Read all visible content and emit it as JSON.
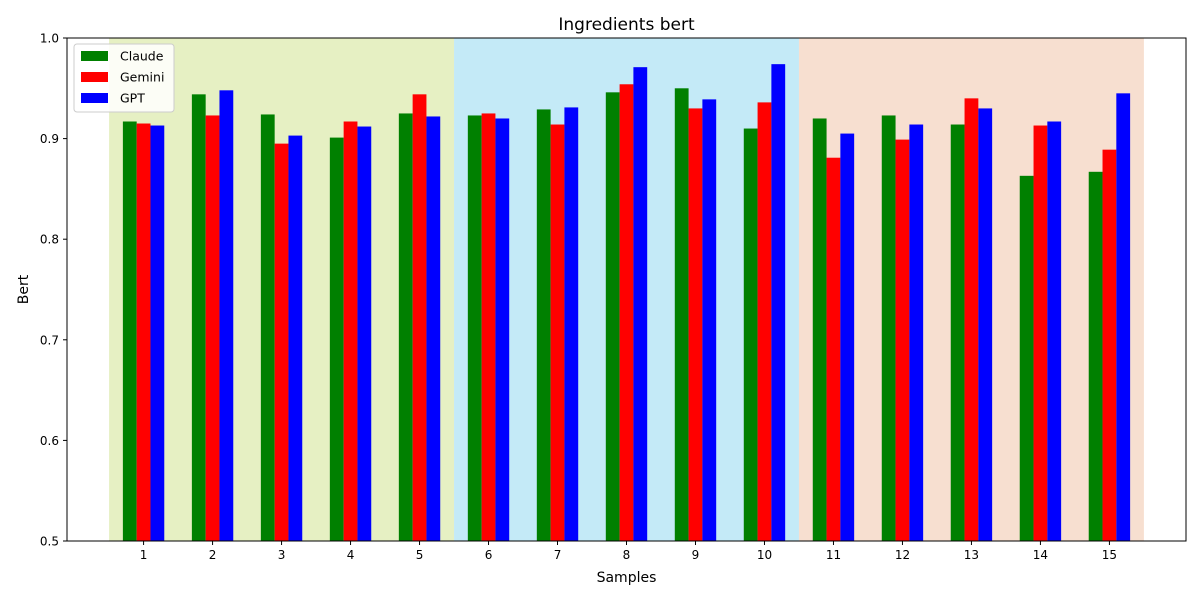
{
  "chart_data": {
    "type": "bar",
    "title": "Ingredients bert",
    "xlabel": "Samples",
    "ylabel": "Bert",
    "categories": [
      "1",
      "2",
      "3",
      "4",
      "5",
      "6",
      "7",
      "8",
      "9",
      "10",
      "11",
      "12",
      "13",
      "14",
      "15"
    ],
    "ylim": [
      0.5,
      1.0
    ],
    "yticks": [
      "0.5",
      "0.6",
      "0.7",
      "0.8",
      "0.9",
      "1.0"
    ],
    "grid": false,
    "legend_position": "top-left",
    "series": [
      {
        "name": "Claude",
        "color": "#008000",
        "values": [
          0.917,
          0.944,
          0.924,
          0.901,
          0.925,
          0.923,
          0.929,
          0.946,
          0.95,
          0.91,
          0.92,
          0.923,
          0.914,
          0.863,
          0.867
        ]
      },
      {
        "name": "Gemini",
        "color": "#ff0000",
        "values": [
          0.915,
          0.923,
          0.895,
          0.917,
          0.944,
          0.925,
          0.914,
          0.954,
          0.93,
          0.936,
          0.881,
          0.899,
          0.94,
          0.913,
          0.889
        ]
      },
      {
        "name": "GPT",
        "color": "#0000ff",
        "values": [
          0.913,
          0.948,
          0.903,
          0.912,
          0.922,
          0.92,
          0.931,
          0.971,
          0.939,
          0.974,
          0.905,
          0.914,
          0.93,
          0.917,
          0.945
        ]
      }
    ],
    "background_bands": [
      {
        "from_category": "1",
        "to_category": "5",
        "color": "#e6f0c3"
      },
      {
        "from_category": "6",
        "to_category": "10",
        "color": "#c4eaf7"
      },
      {
        "from_category": "11",
        "to_category": "15",
        "color": "#f7dfd0"
      }
    ]
  }
}
